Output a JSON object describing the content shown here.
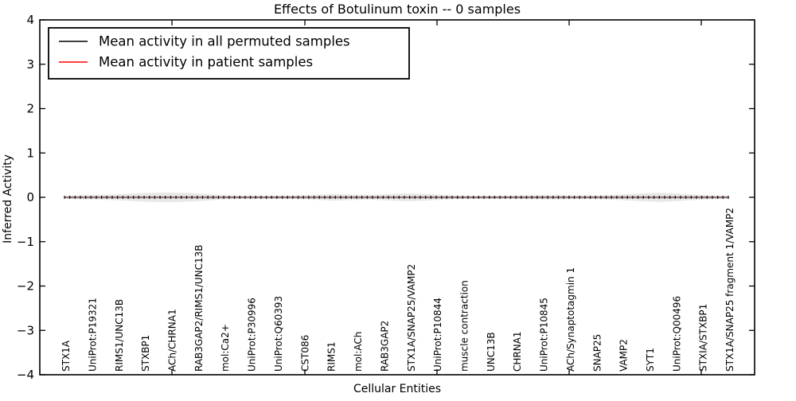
{
  "title": "Effects of Botulinum toxin -- 0 samples",
  "legend": {
    "items": [
      {
        "label": "Mean activity in all permuted samples",
        "color": "#000000"
      },
      {
        "label": "Mean activity in patient samples",
        "color": "#ff0000"
      }
    ]
  },
  "y_axis": {
    "label": "Inferred Activity",
    "tick_labels": [
      "4",
      "3",
      "2",
      "1",
      "0",
      "−1",
      "−2",
      "−3",
      "−4"
    ],
    "min": -4,
    "max": 4
  },
  "x_axis": {
    "label": "Cellular Entities",
    "categories": [
      "STX1A",
      "UniProt:P19321",
      "RIMS1/UNC13B",
      "STXBP1",
      "ACh/CHRNA1",
      "RAB3GAP2/RIMS1/UNC13B",
      "mol:Ca2+",
      "UniProt:P30996",
      "UniProt:Q60393",
      "CST086",
      "RIMS1",
      "mol:ACh",
      "RAB3GAP2",
      "STX1A/SNAP25/VAMP2",
      "UniProt:P10844",
      "muscle contraction",
      "UNC13B",
      "CHRNA1",
      "UniProt:P10845",
      "ACh/Synaptotagmin 1",
      "SNAP25",
      "VAMP2",
      "SYT1",
      "UniProt:Q00496",
      "STXIA/STXBP1",
      "STX1A/SNAP25 fragment 1/VAMP2"
    ]
  },
  "chart_data": {
    "type": "line",
    "title": "Effects of Botulinum toxin -- 0 samples",
    "xlabel": "Cellular Entities",
    "ylabel": "Inferred Activity",
    "ylim": [
      -4,
      4
    ],
    "grid": false,
    "legend_position": "upper left",
    "categories": [
      "STX1A",
      "UniProt:P19321",
      "RIMS1/UNC13B",
      "STXBP1",
      "ACh/CHRNA1",
      "RAB3GAP2/RIMS1/UNC13B",
      "mol:Ca2+",
      "UniProt:P30996",
      "UniProt:Q60393",
      "CST086",
      "RIMS1",
      "mol:ACh",
      "RAB3GAP2",
      "STX1A/SNAP25/VAMP2",
      "UniProt:P10844",
      "muscle contraction",
      "UNC13B",
      "CHRNA1",
      "UniProt:P10845",
      "ACh/Synaptotagmin 1",
      "SNAP25",
      "VAMP2",
      "SYT1",
      "UniProt:Q00496",
      "STXIA/STXBP1",
      "STX1A/SNAP25 fragment 1/VAMP2"
    ],
    "series": [
      {
        "name": "Mean activity in all permuted samples",
        "color": "#000000",
        "values": [
          0,
          0,
          0,
          0,
          0,
          0,
          0,
          0,
          0,
          0,
          0,
          0,
          0,
          0,
          0,
          0,
          0,
          0,
          0,
          0,
          0,
          0,
          0,
          0,
          0,
          0
        ]
      },
      {
        "name": "Mean activity in patient samples",
        "color": "#ff0000",
        "values": [
          0,
          0,
          0,
          0,
          0,
          0,
          0,
          0,
          0,
          0,
          0,
          0,
          0,
          0,
          0,
          0,
          0,
          0,
          0,
          0,
          0,
          0,
          0,
          0,
          0,
          0
        ]
      }
    ],
    "n_markers": 126,
    "labeled_every_n_points": 5,
    "band": {
      "units": "px",
      "color": "#e8e8e8",
      "inner_color": "#cccccc",
      "inner_half_width": 1.6,
      "profile": [
        [
          81,
          1.6
        ],
        [
          95,
          2.2
        ],
        [
          112,
          2.6
        ],
        [
          135,
          3.2
        ],
        [
          160,
          4.4
        ],
        [
          185,
          5.6
        ],
        [
          210,
          6.0
        ],
        [
          235,
          5.6
        ],
        [
          258,
          4.4
        ],
        [
          278,
          2.8
        ],
        [
          300,
          1.9
        ],
        [
          325,
          1.8
        ],
        [
          350,
          2.0
        ],
        [
          375,
          2.4
        ],
        [
          398,
          3.2
        ],
        [
          420,
          4.2
        ],
        [
          442,
          3.4
        ],
        [
          465,
          3.0
        ],
        [
          488,
          4.0
        ],
        [
          510,
          5.0
        ],
        [
          532,
          4.4
        ],
        [
          555,
          3.0
        ],
        [
          575,
          2.2
        ],
        [
          600,
          1.8
        ],
        [
          625,
          1.9
        ],
        [
          650,
          2.2
        ],
        [
          675,
          2.6
        ],
        [
          700,
          2.9
        ],
        [
          722,
          2.4
        ],
        [
          748,
          2.4
        ],
        [
          775,
          3.2
        ],
        [
          800,
          4.6
        ],
        [
          828,
          5.8
        ],
        [
          852,
          4.8
        ],
        [
          872,
          3.4
        ],
        [
          893,
          2.4
        ],
        [
          915,
          1.8
        ]
      ]
    }
  }
}
